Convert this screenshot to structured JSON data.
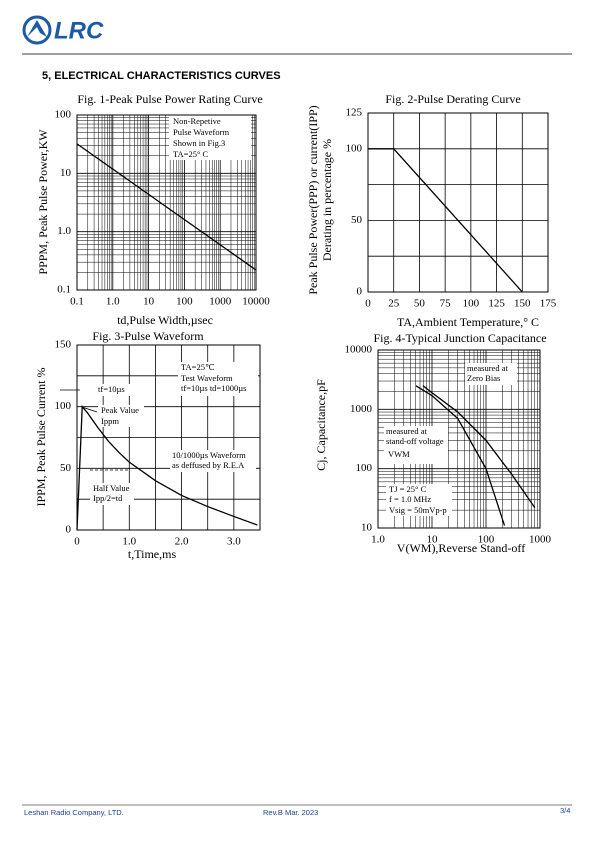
{
  "header": {
    "logo": "LRC"
  },
  "section_title": "5, ELECTRICAL CHARACTERISTICS CURVES",
  "chart_data": [
    {
      "type": "line",
      "title": "Fig. 1-Peak Pulse Power Rating Curve",
      "x_label": "td,Pulse Width,µsec",
      "y_label": "PPPM, Peak Pulse Power,KW",
      "xlog": true,
      "ylog": true,
      "minor_grid": true,
      "xlim": [
        0.1,
        10000
      ],
      "ylim": [
        0.1,
        100
      ],
      "xticks": [
        0.1,
        {
          "value": 1,
          "label": "1.0"
        },
        10,
        100,
        1000,
        10000
      ],
      "yticks": [
        0.1,
        {
          "value": 1,
          "label": "1.0"
        },
        10,
        100
      ],
      "series": [
        {
          "color": "#000000",
          "x": [
            0.1,
            10000
          ],
          "values": [
            32,
            0.22
          ]
        }
      ],
      "annotations": [
        "Non-Repetive",
        "Pulse Waveform",
        "Shown in Fig.3",
        "TA=25° C"
      ]
    },
    {
      "type": "line",
      "title": "Fig. 2-Pulse Derating Curve",
      "x_label": "TA,Ambient Temperature,° C",
      "y_label": [
        "Peak Pulse Power(PPP) or current(IPP)",
        "Derating in percentage %"
      ],
      "xlog": false,
      "ylog": false,
      "xlim": [
        0,
        175
      ],
      "ylim": [
        0,
        125
      ],
      "xticks": [
        0,
        25,
        50,
        75,
        100,
        125,
        150,
        175
      ],
      "yticks": [
        0,
        50,
        100,
        125
      ],
      "ygrid": [
        25,
        75
      ],
      "series": [
        {
          "color": "#000000",
          "x": [
            0,
            25,
            150
          ],
          "values": [
            100,
            100,
            0
          ]
        }
      ],
      "annotations": []
    },
    {
      "type": "line",
      "title": "Fig. 3-Pulse Waveform",
      "x_label": "t,Time,ms",
      "y_label": "IPPM, Peak Pulse Current %",
      "xlog": false,
      "ylog": false,
      "xlim": [
        0,
        3.5
      ],
      "ylim": [
        0,
        150
      ],
      "xticks": [
        0,
        {
          "value": 1,
          "label": "1.0"
        },
        {
          "value": 2,
          "label": "2.0"
        },
        {
          "value": 3,
          "label": "3.0"
        }
      ],
      "xgrid": [
        0.5,
        1.5,
        2.5
      ],
      "yticks": [
        0,
        50,
        100,
        150
      ],
      "ygrid": [
        25,
        75,
        125
      ],
      "series": [
        {
          "color": "#000000",
          "x": [
            0,
            0.1,
            0.2,
            0.4,
            0.6,
            0.8,
            1.0,
            1.5,
            2.0,
            2.5,
            3.0,
            3.45
          ],
          "values": [
            0,
            100,
            95,
            83,
            72,
            63,
            55,
            40,
            28,
            19,
            11,
            4
          ]
        }
      ],
      "annotations": [
        "TA=25℃",
        "Test Waveform",
        "tf=10µs td=1000µs",
        "tf=10µs",
        "Peak Value",
        "Ippm",
        "10/1000µs Waveform",
        "as deffused by R.E.A",
        "Half  Value",
        "Ipp/2=td"
      ]
    },
    {
      "type": "line",
      "title": "Fig. 4-Typical Junction Capacitance",
      "x_label": "V(WM),Reverse Stand-off",
      "y_label": "Cj, Capacitance,pF",
      "xlog": true,
      "ylog": true,
      "minor_grid": true,
      "xlim": [
        1,
        1000
      ],
      "ylim": [
        10,
        10000
      ],
      "xticks": [
        {
          "value": 1,
          "label": "1.0"
        },
        10,
        100,
        1000
      ],
      "yticks": [
        10,
        100,
        1000,
        10000
      ],
      "series": [
        {
          "color": "#000000",
          "x": [
            5,
            10,
            30,
            100,
            220
          ],
          "values": [
            2500,
            1700,
            700,
            100,
            11
          ]
        },
        {
          "color": "#000000",
          "x": [
            6.8,
            10,
            30,
            100,
            300,
            800
          ],
          "values": [
            2500,
            1900,
            900,
            300,
            80,
            22
          ]
        }
      ],
      "annotations": [
        "measured at",
        "Zero Bias",
        "measured at",
        "stand-off voltage",
        "VWM",
        "TJ = 25° C",
        "f = 1.0 MHz",
        "Vsig = 50mVp-p"
      ]
    }
  ],
  "footer": {
    "company": "Leshan Radio Company, LTD.",
    "revision": "Rev.B  Mar.  2023",
    "page": "3/4"
  }
}
